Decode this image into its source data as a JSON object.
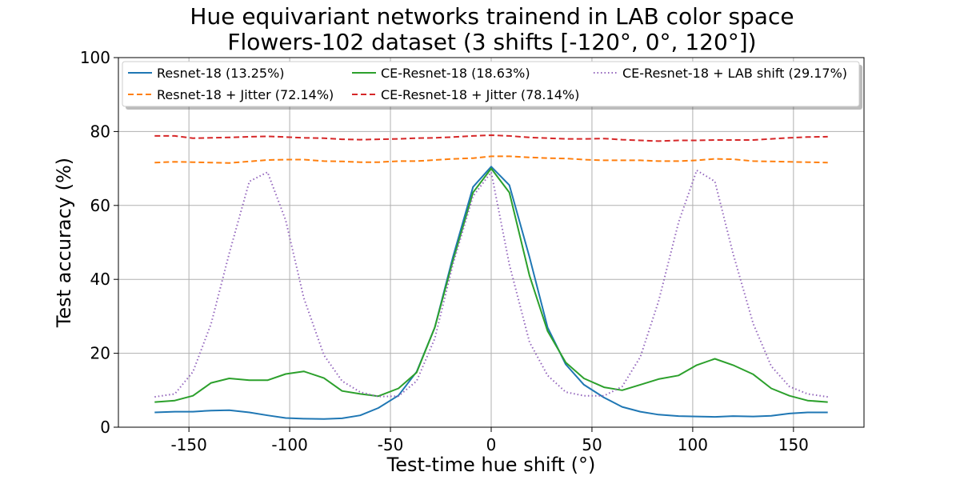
{
  "chart_data": {
    "type": "line",
    "title": [
      "Hue equivariant networks trainend in LAB color space",
      "Flowers-102 dataset (3 shifts [-120°, 0°, 120°])"
    ],
    "xlabel": "Test-time hue shift (°)",
    "ylabel": "Test accuracy (%)",
    "xlim": [
      -185,
      185
    ],
    "ylim": [
      0,
      100
    ],
    "xticks": [
      -150,
      -100,
      -50,
      0,
      50,
      100,
      150
    ],
    "yticks": [
      0,
      20,
      40,
      60,
      80,
      100
    ],
    "grid": true,
    "legend_position": "top",
    "x": [
      -167,
      -157,
      -148,
      -139,
      -130,
      -120,
      -111,
      -102,
      -93,
      -83,
      -74,
      -65,
      -56,
      -46,
      -37,
      -28,
      -19,
      -9,
      0,
      9,
      19,
      28,
      37,
      46,
      56,
      65,
      74,
      83,
      93,
      102,
      111,
      120,
      130,
      139,
      148,
      157,
      167
    ],
    "series": [
      {
        "name": "Resnet-18 (13.25%)",
        "color": "#1f77b4",
        "dash": "solid",
        "values": [
          4.0,
          4.2,
          4.2,
          4.5,
          4.6,
          4.0,
          3.2,
          2.5,
          2.3,
          2.2,
          2.4,
          3.2,
          5.2,
          8.6,
          15.0,
          27.0,
          46.0,
          65.0,
          70.5,
          65.5,
          46.0,
          27.0,
          17.0,
          11.5,
          8.0,
          5.5,
          4.2,
          3.4,
          3.0,
          2.9,
          2.8,
          3.0,
          2.9,
          3.1,
          3.7,
          4.0,
          4.0
        ]
      },
      {
        "name": "Resnet-18 + Jitter (72.14%)",
        "color": "#ff7f0e",
        "dash": "dashed",
        "values": [
          71.6,
          71.8,
          71.7,
          71.6,
          71.5,
          71.9,
          72.3,
          72.4,
          72.4,
          72.0,
          71.9,
          71.7,
          71.7,
          72.0,
          72.0,
          72.3,
          72.6,
          72.8,
          73.3,
          73.3,
          73.0,
          72.8,
          72.7,
          72.4,
          72.2,
          72.2,
          72.2,
          72.0,
          72.0,
          72.2,
          72.6,
          72.5,
          72.0,
          71.9,
          71.8,
          71.7,
          71.6
        ]
      },
      {
        "name": "CE-Resnet-18 (18.63%)",
        "color": "#2ca02c",
        "dash": "solid",
        "values": [
          6.8,
          7.2,
          8.5,
          12.0,
          13.2,
          12.7,
          12.7,
          14.4,
          15.1,
          13.3,
          9.8,
          9.0,
          8.4,
          10.5,
          14.8,
          27.0,
          45.0,
          63.5,
          70.0,
          63.5,
          41.0,
          26.0,
          17.5,
          13.2,
          10.8,
          10.0,
          11.5,
          13.0,
          14.0,
          16.8,
          18.5,
          16.8,
          14.3,
          10.5,
          8.5,
          7.2,
          6.8
        ]
      },
      {
        "name": "CE-Resnet-18 + Jitter (78.14%)",
        "color": "#d62728",
        "dash": "dashed",
        "values": [
          78.8,
          78.8,
          78.2,
          78.3,
          78.4,
          78.6,
          78.7,
          78.5,
          78.3,
          78.2,
          77.9,
          77.8,
          77.9,
          78.0,
          78.2,
          78.3,
          78.5,
          78.8,
          79.0,
          78.8,
          78.4,
          78.2,
          78.0,
          78.0,
          78.1,
          77.8,
          77.6,
          77.4,
          77.6,
          77.6,
          77.7,
          77.7,
          77.7,
          78.0,
          78.3,
          78.5,
          78.6
        ]
      },
      {
        "name": "CE-Resnet-18 + LAB shift (29.17%)",
        "color": "#9467bd",
        "dash": "dotted",
        "values": [
          8.2,
          9.0,
          15.0,
          28.0,
          47.0,
          66.5,
          69.0,
          56.0,
          35.0,
          19.5,
          12.5,
          9.5,
          8.3,
          8.4,
          12.5,
          24.0,
          44.0,
          62.5,
          69.0,
          44.0,
          23.0,
          14.0,
          9.5,
          8.5,
          8.5,
          11.0,
          19.0,
          34.0,
          55.5,
          69.5,
          66.5,
          47.0,
          28.0,
          16.5,
          11.0,
          9.0,
          8.2
        ]
      }
    ]
  }
}
